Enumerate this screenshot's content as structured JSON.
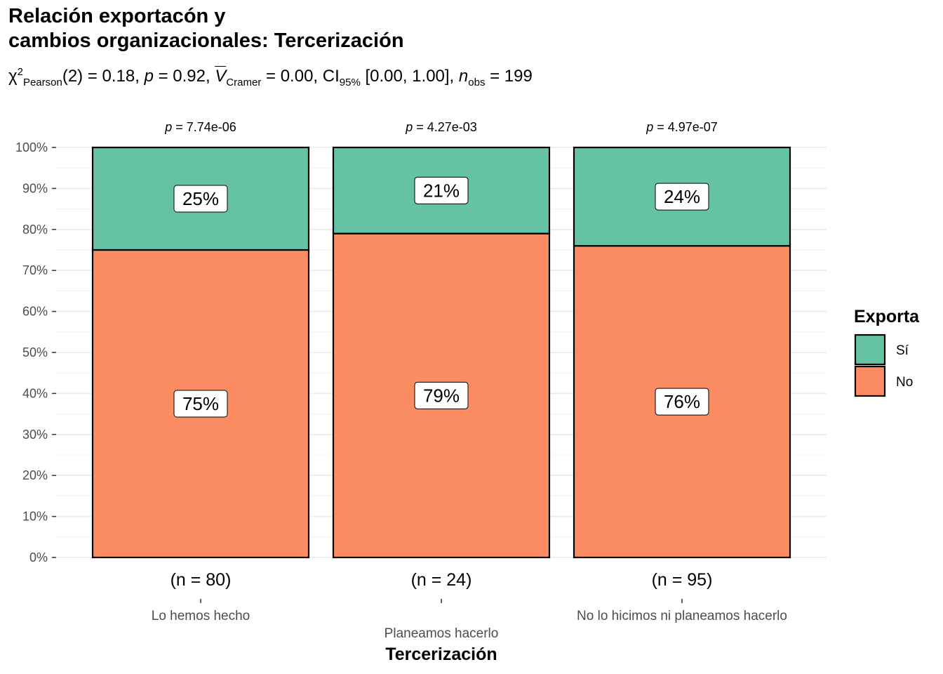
{
  "title_line1": "Relación exportacón y",
  "title_line2": "cambios organizacionales: Tercerización",
  "subtitle": {
    "chi": "χ",
    "chi_sup": "2",
    "chi_sub": "Pearson",
    "df_part": "(2) = 0.18, ",
    "p_sym": "p",
    "p_part": " = 0.92, ",
    "v_sym": "V",
    "v_sub": "Cramer",
    "v_part": " = 0.00, CI",
    "ci_sub": "95%",
    "ci_part": " [0.00, 1.00], ",
    "n_sym": "n",
    "n_sub": "obs",
    "n_part": " = 199"
  },
  "legend": {
    "title": "Exporta",
    "items": [
      {
        "label": "Sí",
        "color": "#66C2A5"
      },
      {
        "label": "No",
        "color": "#FC8D62"
      }
    ]
  },
  "chart_data": {
    "type": "bar",
    "stacked": true,
    "xlabel": "Tercerización",
    "ylabel": "",
    "ylim": [
      0,
      100
    ],
    "y_ticks": [
      "0%",
      "10%",
      "20%",
      "30%",
      "40%",
      "50%",
      "60%",
      "70%",
      "80%",
      "90%",
      "100%"
    ],
    "grid": true,
    "legend_position": "right",
    "categories": [
      "Lo hemos hecho",
      "Planeamos hacerlo",
      "No lo hicimos ni planeamos hacerlo"
    ],
    "n_labels": [
      "(n = 80)",
      "(n = 24)",
      "(n = 95)"
    ],
    "p_values": [
      "7.74e-06",
      "4.27e-03",
      "4.97e-07"
    ],
    "series": [
      {
        "name": "No",
        "color": "#FC8D62",
        "values": [
          75,
          79,
          76
        ],
        "labels": [
          "75%",
          "79%",
          "76%"
        ]
      },
      {
        "name": "Sí",
        "color": "#66C2A5",
        "values": [
          25,
          21,
          24
        ],
        "labels": [
          "25%",
          "21%",
          "24%"
        ]
      }
    ]
  }
}
